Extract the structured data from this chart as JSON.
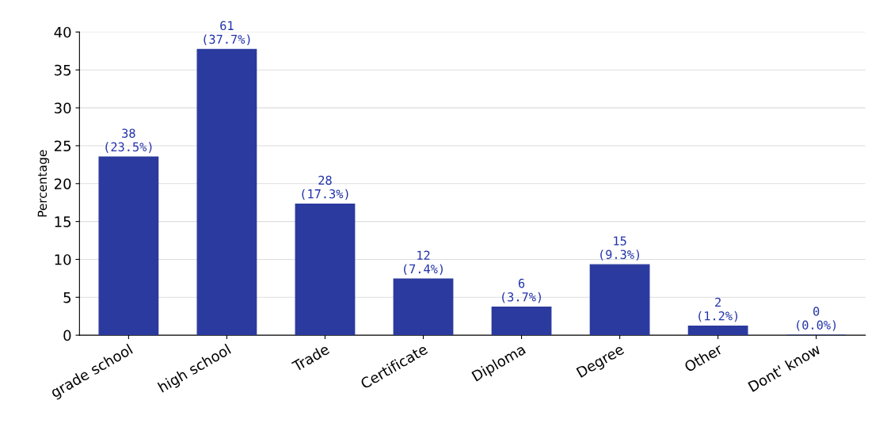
{
  "chart_data": {
    "type": "bar",
    "ylabel": "Percentage",
    "categories": [
      "grade school",
      "high school",
      "Trade",
      "Certificate",
      "Diploma",
      "Degree",
      "Other",
      "Dont' know"
    ],
    "values": [
      23.5,
      37.7,
      17.3,
      7.4,
      3.7,
      9.3,
      1.2,
      0.0
    ],
    "value_labels": [
      "38\n(23.5%)",
      "61\n(37.7%)",
      "28\n(17.3%)",
      "12\n(7.4%)",
      "6\n(3.7%)",
      "15\n(9.3%)",
      "2\n(1.2%)",
      "0\n(0.0%)"
    ],
    "color": "#2b3a9e",
    "ylim": [
      0,
      40
    ],
    "yticks": [
      0,
      5,
      10,
      15,
      20,
      25,
      30,
      35,
      40
    ],
    "grid": "y"
  }
}
